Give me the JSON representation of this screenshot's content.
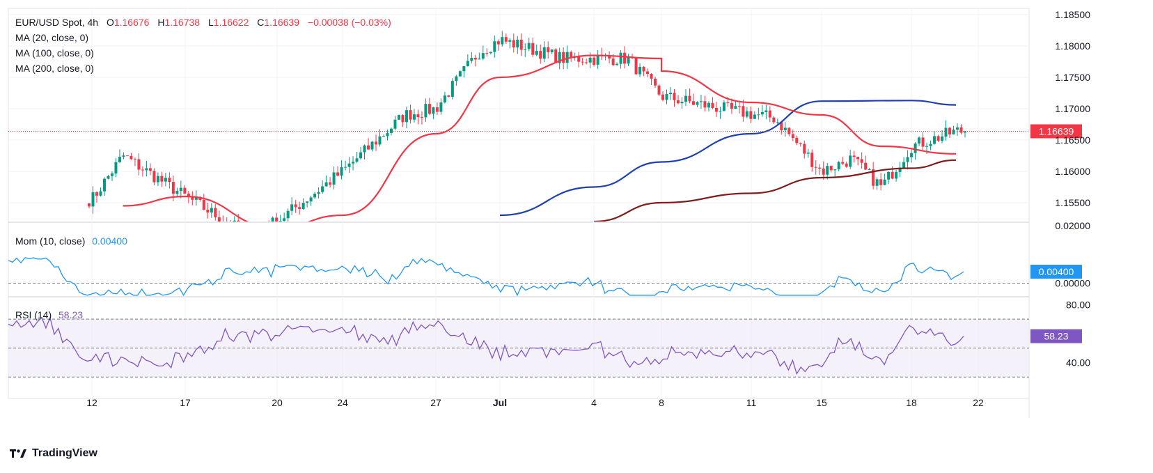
{
  "header": {
    "symbol": "EUR/USD Spot, 4h",
    "open_label": "O",
    "open": "1.16676",
    "high_label": "H",
    "high": "1.16738",
    "low_label": "L",
    "low": "1.16622",
    "close_label": "C",
    "close": "1.16639",
    "change": "−0.00038 (−0.03%)",
    "ma20": "MA (20, close, 0)",
    "ma100": "MA (100, close, 0)",
    "ma200": "MA (200, close, 0)"
  },
  "momentum": {
    "label": "Mom (10, close)",
    "value": "0.00400",
    "badge": "0.00400"
  },
  "rsi": {
    "label": "RSI (14)",
    "value": "58.23",
    "badge": "58.23"
  },
  "price_badge": "1.16639",
  "brand": "TradingView",
  "colors": {
    "up": "#089981",
    "down": "#f23645",
    "ma20": "#f23645",
    "ma100": "#1e40af",
    "ma200": "#7f1d1d",
    "mom": "#2196f3",
    "rsi": "#7e57c2"
  },
  "chart_data": [
    {
      "type": "candlestick",
      "title": "EUR/USD Spot, 4h",
      "x_tick_labels": [
        "12",
        "17",
        "20",
        "24",
        "27",
        "Jul",
        "4",
        "8",
        "11",
        "15",
        "18",
        "22"
      ],
      "y_tick_labels": [
        "1.18500",
        "1.18000",
        "1.17500",
        "1.17000",
        "1.16500",
        "1.16000",
        "1.15500"
      ],
      "ylim": [
        1.152,
        1.186
      ],
      "last_price": 1.16639,
      "key_points": [
        {
          "x": "12",
          "price": 1.1555
        },
        {
          "x": "13",
          "price": 1.1625
        },
        {
          "x": "17",
          "price": 1.156
        },
        {
          "x": "19",
          "price": 1.15
        },
        {
          "x": "20",
          "price": 1.152
        },
        {
          "x": "24",
          "price": 1.16
        },
        {
          "x": "26",
          "price": 1.169
        },
        {
          "x": "27",
          "price": 1.17
        },
        {
          "x": "Jun 30",
          "price": 1.179
        },
        {
          "x": "Jul 1",
          "price": 1.181
        },
        {
          "x": "Jul 3",
          "price": 1.178
        },
        {
          "x": "Jul 5",
          "price": 1.178
        },
        {
          "x": "Jul 8",
          "price": 1.172
        },
        {
          "x": "Jul 10",
          "price": 1.17
        },
        {
          "x": "Jul 12",
          "price": 1.1685
        },
        {
          "x": "Jul 15",
          "price": 1.16
        },
        {
          "x": "Jul 16",
          "price": 1.162
        },
        {
          "x": "Jul 17",
          "price": 1.1575
        },
        {
          "x": "Jul 18",
          "price": 1.164
        },
        {
          "x": "Jul 21",
          "price": 1.1664
        }
      ],
      "ma20_points": [
        {
          "x": "13",
          "price": 1.1545
        },
        {
          "x": "17",
          "price": 1.156
        },
        {
          "x": "20",
          "price": 1.151
        },
        {
          "x": "24",
          "price": 1.153
        },
        {
          "x": "27",
          "price": 1.166
        },
        {
          "x": "Jul 1",
          "price": 1.175
        },
        {
          "x": "Jul 4",
          "price": 1.1785
        },
        {
          "x": "Jul 6",
          "price": 1.178
        },
        {
          "x": "Jul 8",
          "price": 1.176
        },
        {
          "x": "Jul 11",
          "price": 1.171
        },
        {
          "x": "Jul 15",
          "price": 1.169
        },
        {
          "x": "Jul 17",
          "price": 1.164
        },
        {
          "x": "Jul 21",
          "price": 1.1628
        }
      ],
      "ma100_points": [
        {
          "x": "Jul 1",
          "price": 1.153
        },
        {
          "x": "Jul 4",
          "price": 1.1575
        },
        {
          "x": "Jul 8",
          "price": 1.1615
        },
        {
          "x": "Jul 11",
          "price": 1.166
        },
        {
          "x": "Jul 15",
          "price": 1.1712
        },
        {
          "x": "Jul 18",
          "price": 1.1713
        },
        {
          "x": "Jul 21",
          "price": 1.1706
        }
      ],
      "ma200_points": [
        {
          "x": "Jul 4",
          "price": 1.152
        },
        {
          "x": "Jul 8",
          "price": 1.155
        },
        {
          "x": "Jul 11",
          "price": 1.1565
        },
        {
          "x": "Jul 15",
          "price": 1.159
        },
        {
          "x": "Jul 18",
          "price": 1.1605
        },
        {
          "x": "Jul 21",
          "price": 1.1618
        }
      ]
    },
    {
      "type": "line",
      "title": "Mom (10, close)",
      "y_tick_labels": [
        "0.02000",
        "0.00000"
      ],
      "ylim": [
        -0.0045,
        0.021
      ],
      "last_value": 0.004
    },
    {
      "type": "line",
      "title": "RSI (14)",
      "y_tick_labels": [
        "80.00",
        "40.00"
      ],
      "ylim": [
        20,
        85
      ],
      "bands": [
        30,
        50,
        70
      ],
      "last_value": 58.23
    }
  ]
}
